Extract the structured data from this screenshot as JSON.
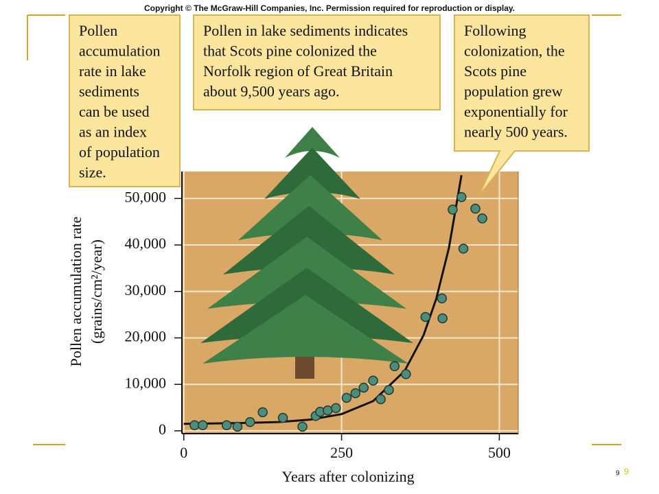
{
  "header": {
    "copyright": "Copyright © The McGraw-Hill Companies, Inc. Permission required for reproduction or display."
  },
  "annotations": [
    {
      "lines": [
        "Pollen",
        "accumulation",
        "rate in lake",
        "sediments",
        "can be used",
        "as an index",
        "of population",
        "size."
      ]
    },
    {
      "lines": [
        "Pollen in lake sediments indicates",
        "that Scots pine colonized the",
        "Norfolk region of Great Britain",
        "about 9,500 years ago."
      ]
    },
    {
      "lines": [
        "Following",
        "colonization, the",
        "Scots pine",
        "population grew",
        "exponentially for",
        "nearly 500 years."
      ]
    }
  ],
  "page_number": "9",
  "page_number_accent": "9",
  "chart_data": {
    "type": "scatter",
    "x_label": "Years after colonizing",
    "y_label": [
      "Pollen accumulation rate",
      "(grains/cm²/year)"
    ],
    "xlim": [
      -3,
      530
    ],
    "ylim": [
      -600,
      55800
    ],
    "xticks": [
      0,
      250,
      500
    ],
    "yticks": [
      0,
      {
        "value": 10000,
        "label": "10,000"
      },
      {
        "value": 20000,
        "label": "20,000"
      },
      {
        "value": 30000,
        "label": "30,000"
      },
      {
        "value": 40000,
        "label": "40,000"
      },
      {
        "value": 50000,
        "label": "50,000"
      }
    ],
    "grid": true,
    "background": "#d9a866",
    "series": [
      {
        "type": "scatter",
        "color": "#4e8c7c",
        "x": [
          17,
          30,
          68,
          85,
          105,
          125,
          157,
          188,
          209,
          216,
          228,
          241,
          258,
          272,
          285,
          300,
          312,
          325,
          334,
          352,
          383,
          409,
          410,
          426,
          440,
          443,
          462,
          473
        ],
        "values": [
          1200,
          1200,
          1200,
          900,
          1900,
          4000,
          2800,
          900,
          3200,
          4100,
          4400,
          4900,
          7100,
          8100,
          9300,
          10800,
          6800,
          8800,
          13900,
          12200,
          24500,
          28500,
          24200,
          47600,
          50300,
          39200,
          47800,
          45700
        ]
      },
      {
        "type": "line",
        "color": "#111111",
        "x": [
          0,
          50,
          100,
          150,
          200,
          250,
          300,
          350,
          380,
          400,
          420,
          440
        ],
        "values": [
          1500,
          1600,
          1700,
          1900,
          2400,
          3600,
          6400,
          12900,
          20600,
          28400,
          39300,
          55000
        ]
      }
    ]
  }
}
